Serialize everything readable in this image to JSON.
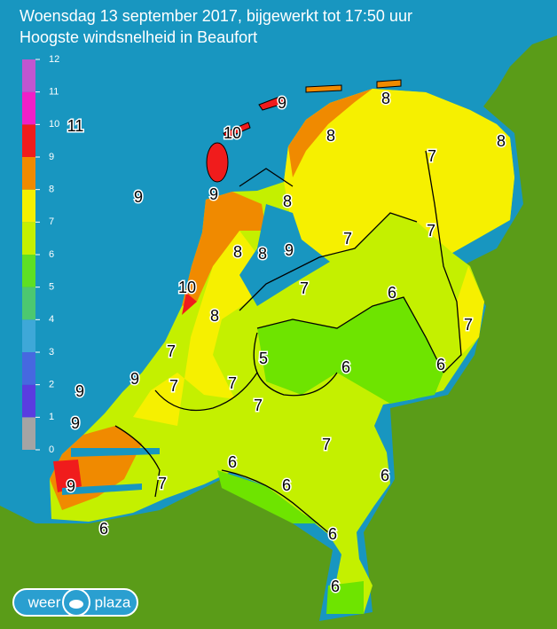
{
  "header": {
    "title": "Woensdag 13 september 2017, bijgewerkt tot 17:50 uur",
    "subtitle": "Hoogste windsnelheid in Beaufort"
  },
  "legend": {
    "ticks": [
      0,
      1,
      2,
      3,
      4,
      5,
      6,
      7,
      8,
      9,
      10,
      11,
      12
    ],
    "colors": [
      "#a4a4a4",
      "#5a3ce0",
      "#4668e0",
      "#3ea8d8",
      "#4cc870",
      "#5ee024",
      "#c4f000",
      "#f6f000",
      "#f08a00",
      "#f01c1c",
      "#f020c8",
      "#c056d0"
    ]
  },
  "map": {
    "labels": [
      "9",
      "8",
      "10",
      "11",
      "8",
      "8",
      "7",
      "9",
      "9",
      "8",
      "7",
      "7",
      "8",
      "8",
      "9",
      "10",
      "7",
      "6",
      "8",
      "7",
      "7",
      "5",
      "6",
      "6",
      "9",
      "7",
      "7",
      "9",
      "7",
      "9",
      "7",
      "6",
      "6",
      "9",
      "7",
      "6",
      "6",
      "6",
      "6"
    ]
  },
  "logo": {
    "left": "weer",
    "right": "plaza"
  }
}
